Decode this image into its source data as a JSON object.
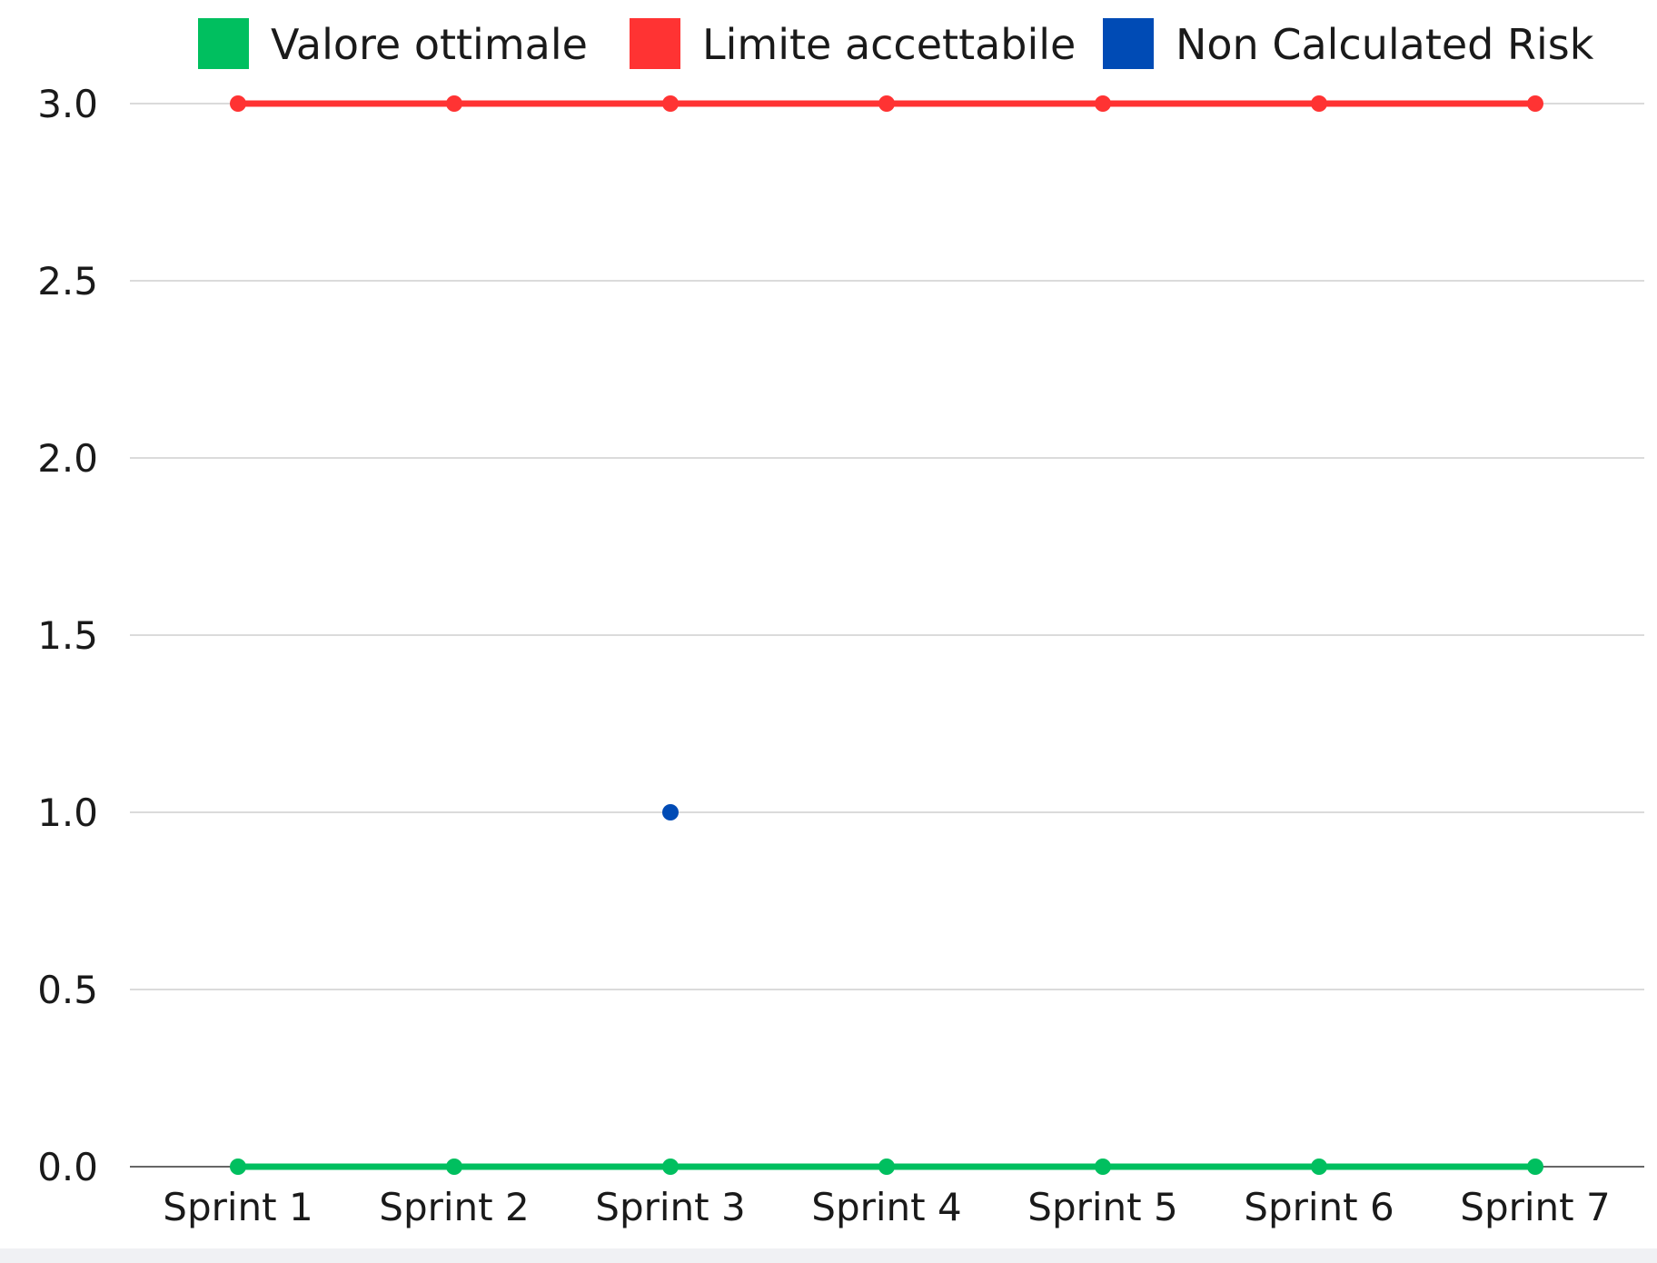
{
  "chart_data": {
    "type": "line",
    "categories": [
      "Sprint 1",
      "Sprint 2",
      "Sprint 3",
      "Sprint 4",
      "Sprint 5",
      "Sprint 6",
      "Sprint 7"
    ],
    "ylim": [
      0,
      3
    ],
    "yticks": [
      "0.0",
      "0.5",
      "1.0",
      "1.5",
      "2.0",
      "2.5",
      "3.0"
    ],
    "ytick_values": [
      0,
      0.5,
      1,
      1.5,
      2,
      2.5,
      3
    ],
    "grid": true,
    "legend_position": "top",
    "series": [
      {
        "name": "Valore ottimale",
        "color": "#00bf5f",
        "values": [
          0,
          0,
          0,
          0,
          0,
          0,
          0
        ]
      },
      {
        "name": "Limite accettabile",
        "color": "#ff3333",
        "values": [
          3,
          3,
          3,
          3,
          3,
          3,
          3
        ]
      },
      {
        "name": "Non Calculated Risk",
        "color": "#004bb5",
        "values": [
          null,
          null,
          1,
          null,
          null,
          null,
          null
        ]
      }
    ]
  }
}
